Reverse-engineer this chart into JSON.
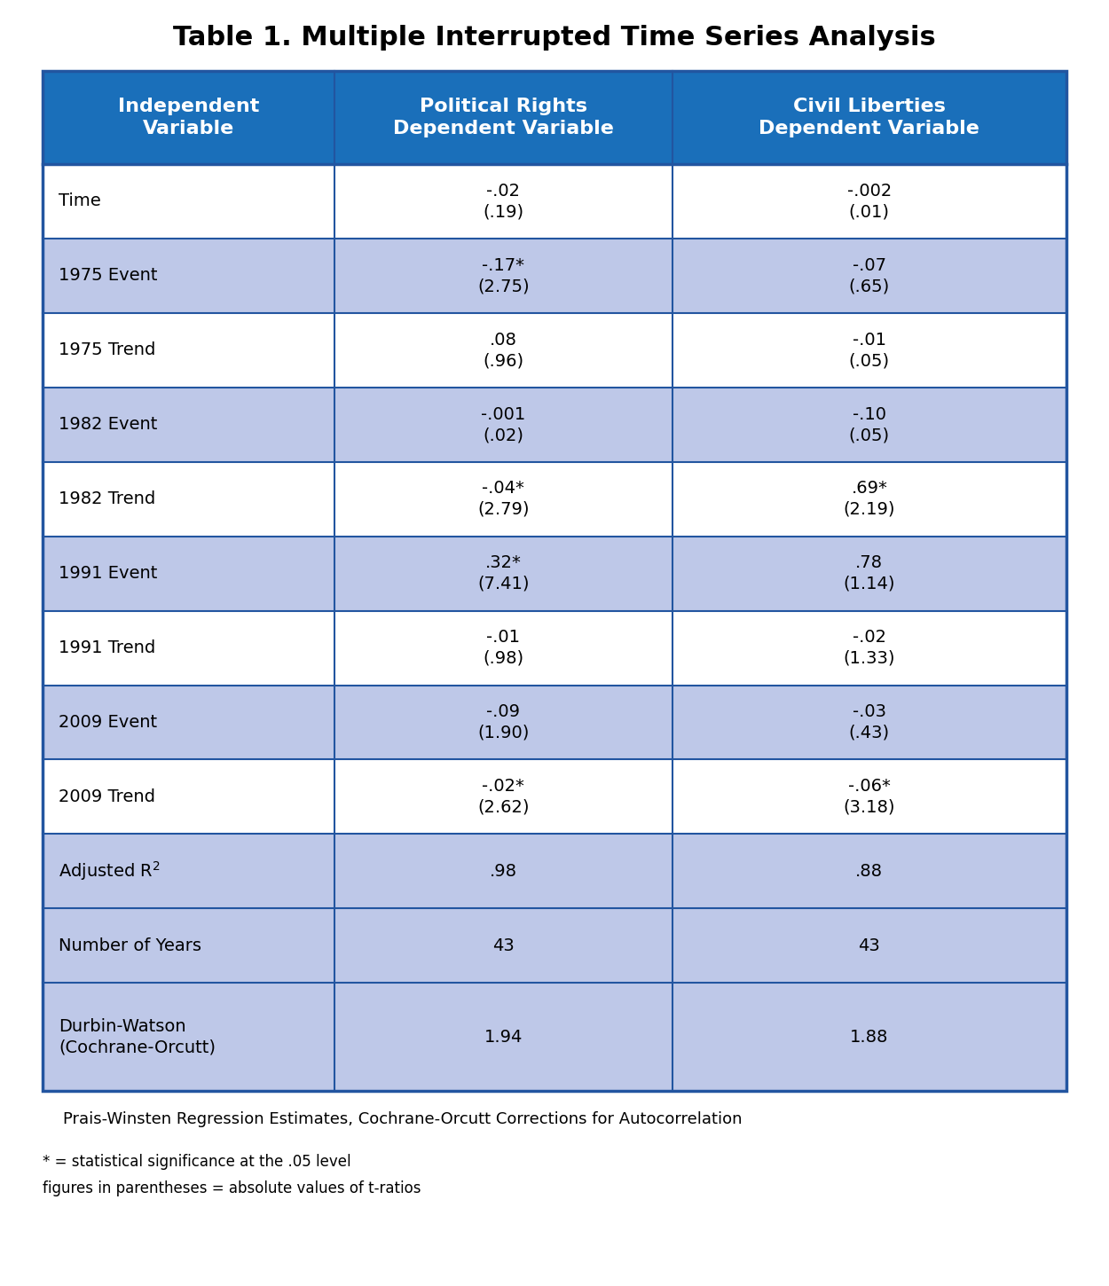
{
  "title": "Table 1. Multiple Interrupted Time Series Analysis",
  "header_bg_color": "#1a6fba",
  "header_text_color": "#FFFFFF",
  "header_labels": [
    "Independent\nVariable",
    "Political Rights\nDependent Variable",
    "Civil Liberties\nDependent Variable"
  ],
  "row_bg_colors": [
    "#FFFFFF",
    "#bec8e8",
    "#FFFFFF",
    "#bec8e8",
    "#FFFFFF",
    "#bec8e8",
    "#FFFFFF",
    "#bec8e8",
    "#FFFFFF",
    "#bec8e8",
    "#bec8e8",
    "#bec8e8"
  ],
  "rows": [
    {
      "label": "Time",
      "col1_line1": "-.02",
      "col1_line2": "(.19)",
      "col2_line1": "-.002",
      "col2_line2": "(.01)"
    },
    {
      "label": "1975 Event",
      "col1_line1": "-.17*",
      "col1_line2": "(2.75)",
      "col2_line1": "-.07",
      "col2_line2": "(.65)"
    },
    {
      "label": "1975 Trend",
      "col1_line1": ".08",
      "col1_line2": "(.96)",
      "col2_line1": "-.01",
      "col2_line2": "(.05)"
    },
    {
      "label": "1982 Event",
      "col1_line1": "-.001",
      "col1_line2": "(.02)",
      "col2_line1": "-.10",
      "col2_line2": "(.05)"
    },
    {
      "label": "1982 Trend",
      "col1_line1": "-.04*",
      "col1_line2": "(2.79)",
      "col2_line1": ".69*",
      "col2_line2": "(2.19)"
    },
    {
      "label": "1991 Event",
      "col1_line1": ".32*",
      "col1_line2": "(7.41)",
      "col2_line1": ".78",
      "col2_line2": "(1.14)"
    },
    {
      "label": "1991 Trend",
      "col1_line1": "-.01",
      "col1_line2": "(.98)",
      "col2_line1": "-.02",
      "col2_line2": "(1.33)"
    },
    {
      "label": "2009 Event",
      "col1_line1": "-.09",
      "col1_line2": "(1.90)",
      "col2_line1": "-.03",
      "col2_line2": "(.43)"
    },
    {
      "label": "2009 Trend",
      "col1_line1": "-.02*",
      "col1_line2": "(2.62)",
      "col2_line1": "-.06*",
      "col2_line2": "(3.18)"
    },
    {
      "label": "Adjusted R$^2$",
      "col1_line1": ".98",
      "col1_line2": "",
      "col2_line1": ".88",
      "col2_line2": ""
    },
    {
      "label": "Number of Years",
      "col1_line1": "43",
      "col1_line2": "",
      "col2_line1": "43",
      "col2_line2": ""
    },
    {
      "label": "Durbin-Watson\n(Cochrane-Orcutt)",
      "col1_line1": "1.94",
      "col1_line2": "",
      "col2_line1": "1.88",
      "col2_line2": ""
    }
  ],
  "footnote1": "    Prais-Winsten Regression Estimates, Cochrane-Orcutt Corrections for Autocorrelation",
  "footnote2": "* = statistical significance at the .05 level",
  "footnote3": "figures in parentheses = absolute values of t-ratios",
  "border_color": "#2255a0",
  "fig_width": 12.5,
  "fig_height": 14.5,
  "dpi": 100
}
